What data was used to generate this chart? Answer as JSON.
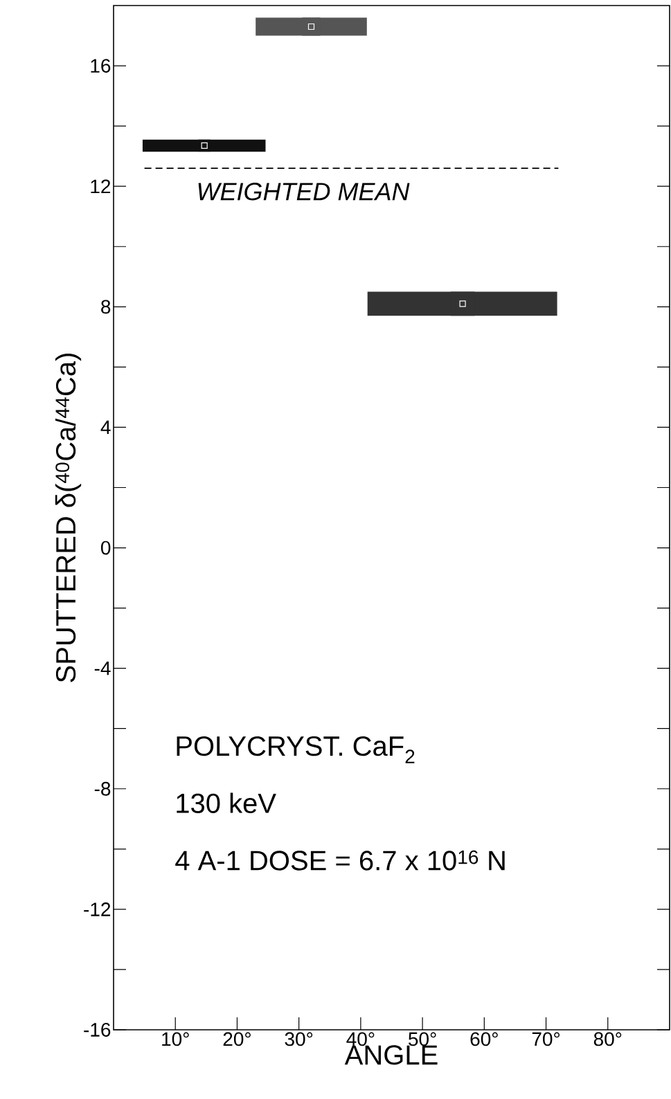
{
  "chart_data": {
    "type": "scatter",
    "ylabel": "SPUTTERED δ($^{40}$Ca/$^{44}$Ca)",
    "xlabel": "ANGLE",
    "x": [
      14.7,
      32,
      56.5
    ],
    "values": [
      13.35,
      17.3,
      8.1
    ],
    "xerrors": [
      [
        4.7,
        24.6
      ],
      [
        23,
        41
      ],
      [
        41.1,
        71.8
      ]
    ],
    "errors": [
      0.2,
      0.3,
      0.4
    ],
    "colors": [
      "#111111",
      "#555555",
      "#333333"
    ],
    "marker": "square",
    "xlim": [
      0,
      90
    ],
    "ylim": [
      -16,
      18
    ],
    "xticks": [
      {
        "value": 10,
        "label": "10°"
      },
      {
        "value": 20,
        "label": "20°"
      },
      {
        "value": 30,
        "label": "30°"
      },
      {
        "value": 40,
        "label": "40°"
      },
      {
        "value": 50,
        "label": "50°"
      },
      {
        "value": 60,
        "label": "60°"
      },
      {
        "value": 70,
        "label": "70°"
      },
      {
        "value": 80,
        "label": "80°"
      }
    ],
    "yticks": [
      -16,
      -12,
      -8,
      -4,
      0,
      4,
      8,
      12,
      16
    ],
    "ref_lines": [
      {
        "axis": "y",
        "value": 12.6,
        "label": "WEIGHTED MEAN",
        "line_style": "dashed",
        "color": "#000000"
      }
    ],
    "annotations": [
      "POLYCRYST. CaF$_{2}$",
      "130 keV",
      "4 A-1   DOSE = 6.7 x 10$^{16}$ N"
    ],
    "grid": false
  }
}
